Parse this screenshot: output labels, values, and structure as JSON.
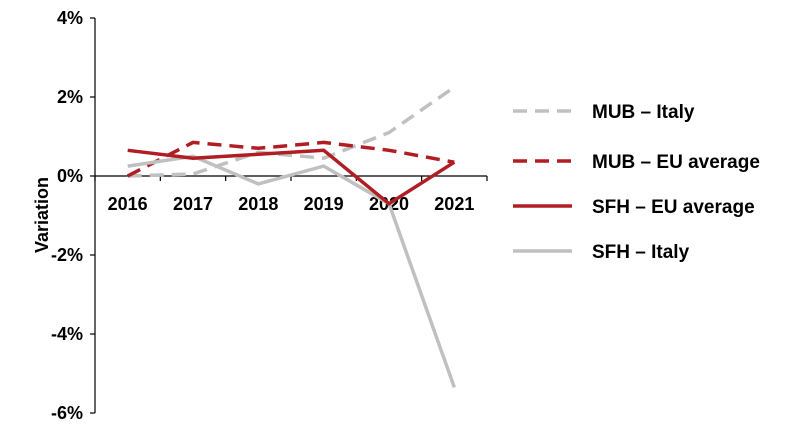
{
  "chart_data": {
    "type": "line",
    "title": "",
    "xlabel": "",
    "ylabel": "Variation",
    "categories": [
      "2016",
      "2017",
      "2018",
      "2019",
      "2020",
      "2021"
    ],
    "ylim": [
      -6,
      4
    ],
    "yticks": [
      -6,
      -4,
      -2,
      0,
      2,
      4
    ],
    "ytick_labels": [
      "-6%",
      "-4%",
      "-2%",
      "0%",
      "2%",
      "4%"
    ],
    "grid": false,
    "legend_position": "right",
    "series": [
      {
        "name": "MUB – Italy",
        "color": "#c0c0c0",
        "dash": "dashed",
        "values": [
          0.0,
          0.05,
          0.6,
          0.45,
          1.1,
          2.25
        ]
      },
      {
        "name": "MUB – EU average",
        "color": "#b01e23",
        "dash": "dashed",
        "values": [
          0.0,
          0.85,
          0.7,
          0.85,
          0.65,
          0.35
        ]
      },
      {
        "name": "SFH – EU average",
        "color": "#b01e23",
        "dash": "solid",
        "values": [
          0.65,
          0.45,
          0.55,
          0.65,
          -0.7,
          0.35
        ]
      },
      {
        "name": "SFH – Italy",
        "color": "#c0c0c0",
        "dash": "solid",
        "values": [
          0.25,
          0.5,
          -0.2,
          0.25,
          -0.7,
          -5.35
        ]
      }
    ]
  }
}
